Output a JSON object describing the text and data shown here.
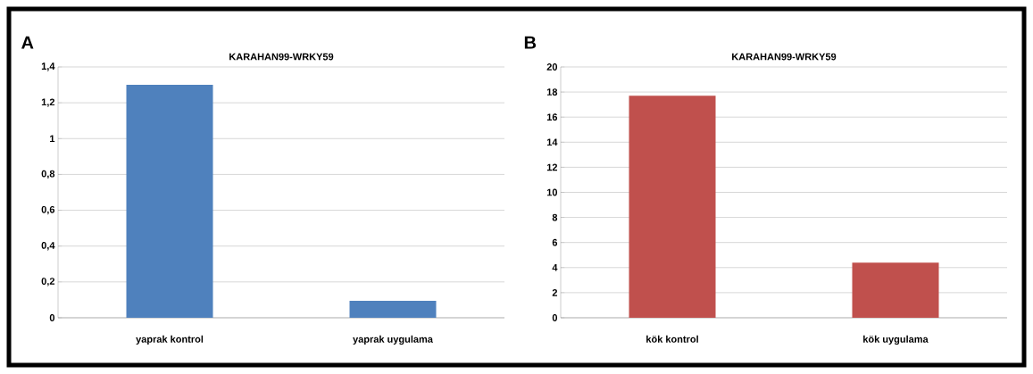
{
  "chart_data": [
    {
      "type": "bar",
      "title": "KARAHAN99-WRKY59",
      "categories": [
        "yaprak kontrol",
        "yaprak uygulama"
      ],
      "values": [
        1.3,
        0.094
      ],
      "color": "#4f81bd",
      "ylim": [
        0,
        1.4
      ],
      "yticks": [
        0,
        {
          "value": 0.2,
          "label": "0,2"
        },
        {
          "value": 0.4,
          "label": "0,4"
        },
        {
          "value": 0.6,
          "label": "0,6"
        },
        {
          "value": 0.8,
          "label": "0,8"
        },
        1,
        {
          "value": 1.2,
          "label": "1,2"
        },
        {
          "value": 1.4,
          "label": "1,4"
        }
      ],
      "grid": "y",
      "annotations": [
        "A"
      ]
    },
    {
      "type": "bar",
      "title": "KARAHAN99-WRKY59",
      "categories": [
        "kök kontrol",
        "kök uygulama"
      ],
      "values": [
        17.7,
        4.4
      ],
      "color": "#c0504d",
      "ylim": [
        0,
        20
      ],
      "yticks": [
        0,
        2,
        4,
        6,
        8,
        10,
        12,
        14,
        16,
        18,
        20
      ],
      "grid": "y",
      "annotations": [
        "B"
      ]
    }
  ]
}
